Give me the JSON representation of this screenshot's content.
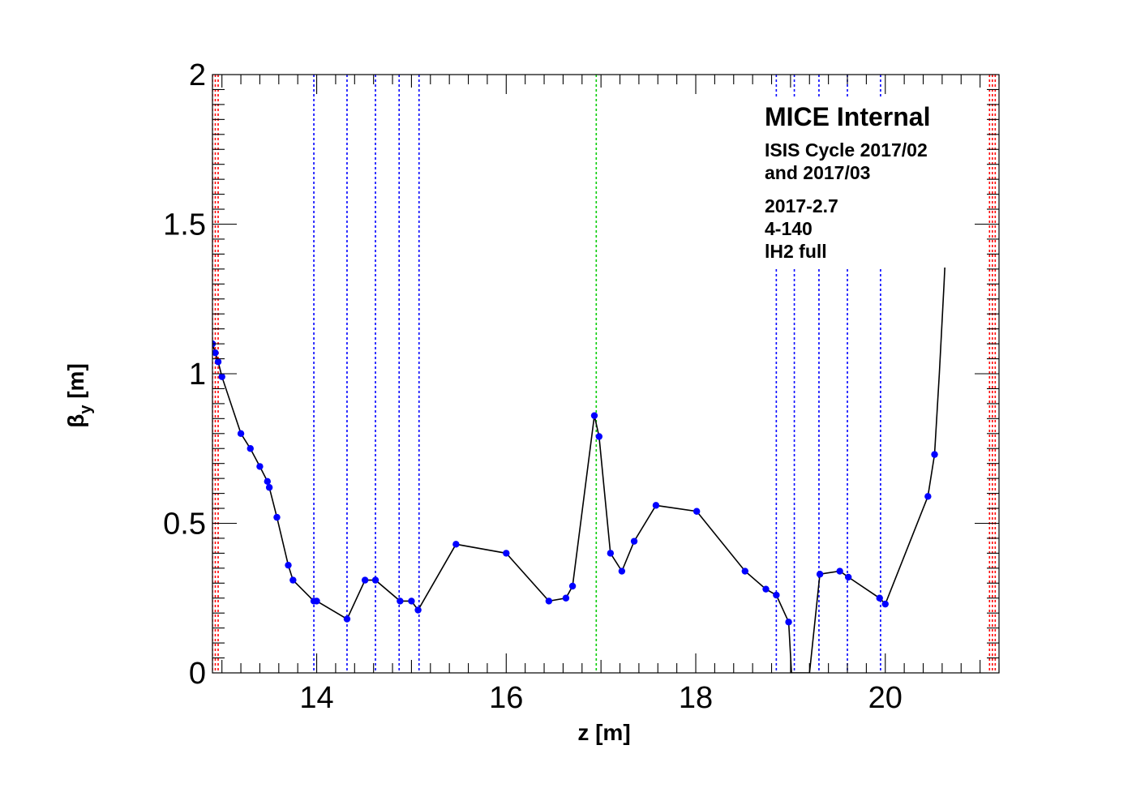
{
  "chart_data": {
    "type": "line",
    "xlabel": "z [m]",
    "ylabel_main": "β",
    "ylabel_sub": "y",
    "ylabel_unit": " [m]",
    "xlim": [
      12.9,
      21.2
    ],
    "ylim": [
      0,
      2
    ],
    "x_ticks": [
      14,
      16,
      18,
      20
    ],
    "x_tick_labels": [
      "14",
      "16",
      "18",
      "20"
    ],
    "y_ticks": [
      0,
      0.5,
      1,
      1.5,
      2
    ],
    "y_tick_labels": [
      "0",
      "0.5",
      "1",
      "1.5",
      "2"
    ],
    "grid": false,
    "annotations": {
      "title": "MICE Internal",
      "line1": "ISIS Cycle 2017/02",
      "line2": "and 2017/03",
      "line3": "2017-2.7",
      "line4": "4-140",
      "line5": "lH2 full"
    },
    "series": [
      {
        "type": "line",
        "color": "#000000",
        "x": [
          12.9,
          12.93,
          12.96,
          13.0,
          13.2,
          13.3,
          13.4,
          13.48,
          13.5,
          13.58,
          13.7,
          13.75,
          13.97,
          14.0,
          14.32,
          14.51,
          14.62,
          14.88,
          15.0,
          15.07,
          15.47,
          16.0,
          16.45,
          16.63,
          16.7,
          16.93,
          16.98,
          17.1,
          17.22,
          17.35,
          17.58,
          18.01,
          18.52,
          18.74,
          18.85,
          18.98,
          19.01,
          19.2,
          19.31,
          19.52,
          19.61,
          19.94,
          20.0,
          20.45,
          20.52,
          20.57,
          20.62,
          20.65
        ],
        "values": [
          1.1,
          1.07,
          1.04,
          0.99,
          0.8,
          0.75,
          0.69,
          0.64,
          0.62,
          0.52,
          0.36,
          0.31,
          0.24,
          0.24,
          0.18,
          0.31,
          0.31,
          0.24,
          0.24,
          0.21,
          0.43,
          0.4,
          0.24,
          0.25,
          0.29,
          0.86,
          0.79,
          0.4,
          0.34,
          0.44,
          0.56,
          0.54,
          0.34,
          0.28,
          0.26,
          0.17,
          0.0,
          0.0,
          0.33,
          0.34,
          0.32,
          0.25,
          0.23,
          0.59,
          0.73,
          1.0,
          1.3,
          1.5
        ]
      },
      {
        "type": "scatter",
        "color": "#0000ff",
        "x": [
          12.9,
          12.93,
          12.96,
          13.0,
          13.2,
          13.3,
          13.4,
          13.48,
          13.5,
          13.58,
          13.7,
          13.75,
          13.97,
          14.0,
          14.32,
          14.51,
          14.62,
          14.88,
          15.0,
          15.07,
          15.47,
          16.0,
          16.45,
          16.63,
          16.7,
          16.93,
          16.98,
          17.1,
          17.22,
          17.35,
          17.58,
          18.01,
          18.52,
          18.74,
          18.85,
          18.98,
          19.31,
          19.52,
          19.61,
          19.94,
          20.0,
          20.45,
          20.52
        ],
        "values": [
          1.1,
          1.07,
          1.04,
          0.99,
          0.8,
          0.75,
          0.69,
          0.64,
          0.62,
          0.52,
          0.36,
          0.31,
          0.24,
          0.24,
          0.18,
          0.31,
          0.31,
          0.24,
          0.24,
          0.21,
          0.43,
          0.4,
          0.24,
          0.25,
          0.29,
          0.86,
          0.79,
          0.4,
          0.34,
          0.44,
          0.56,
          0.54,
          0.34,
          0.28,
          0.26,
          0.17,
          0.33,
          0.34,
          0.32,
          0.25,
          0.23,
          0.59,
          0.73
        ]
      },
      {
        "type": "vlines",
        "color": "#0000ff",
        "style": "dotted",
        "x": [
          13.97,
          14.32,
          14.62,
          14.87,
          15.08,
          18.85,
          19.04,
          19.3,
          19.6,
          19.95
        ]
      },
      {
        "type": "vlines",
        "color": "#00cc00",
        "style": "dotted",
        "x": [
          16.95
        ]
      },
      {
        "type": "vlines",
        "color": "#ff0000",
        "style": "dotted",
        "x": [
          12.9,
          12.93,
          12.96,
          21.1,
          21.13,
          21.16
        ]
      }
    ]
  }
}
